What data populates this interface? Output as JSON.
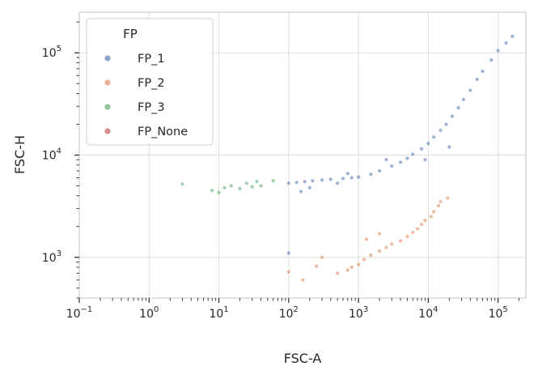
{
  "chart_data": {
    "type": "scatter",
    "xlabel": "FSC-A",
    "ylabel": "FSC-H",
    "x_scale": "log",
    "y_scale": "log",
    "xlim": [
      0.1,
      250000
    ],
    "ylim": [
      400,
      250000
    ],
    "x_ticks": [
      {
        "value": 0.1,
        "base": "10",
        "exp": "−1"
      },
      {
        "value": 1,
        "base": "10",
        "exp": "0"
      },
      {
        "value": 10,
        "base": "10",
        "exp": "1"
      },
      {
        "value": 100,
        "base": "10",
        "exp": "2"
      },
      {
        "value": 1000,
        "base": "10",
        "exp": "3"
      },
      {
        "value": 10000,
        "base": "10",
        "exp": "4"
      },
      {
        "value": 100000,
        "base": "10",
        "exp": "5"
      }
    ],
    "y_ticks": [
      {
        "value": 1000,
        "base": "10",
        "exp": "3"
      },
      {
        "value": 10000,
        "base": "10",
        "exp": "4"
      },
      {
        "value": 100000,
        "base": "10",
        "exp": "5"
      }
    ],
    "grid": true,
    "legend": {
      "title": "FP",
      "placement": "top-left",
      "entries": [
        "FP_1",
        "FP_2",
        "FP_3",
        "FP_None"
      ]
    },
    "series": [
      {
        "name": "FP_1",
        "color": "#4c72b0",
        "points": [
          [
            100,
            5300
          ],
          [
            130,
            5400
          ],
          [
            170,
            5500
          ],
          [
            220,
            5600
          ],
          [
            300,
            5700
          ],
          [
            400,
            5800
          ],
          [
            600,
            5900
          ],
          [
            800,
            6000
          ],
          [
            1000,
            6100
          ],
          [
            1500,
            6500
          ],
          [
            2000,
            7000
          ],
          [
            3000,
            7800
          ],
          [
            4000,
            8500
          ],
          [
            5000,
            9300
          ],
          [
            6000,
            10200
          ],
          [
            8000,
            11500
          ],
          [
            10000,
            13000
          ],
          [
            12000,
            15000
          ],
          [
            15000,
            17500
          ],
          [
            18000,
            20000
          ],
          [
            22000,
            24000
          ],
          [
            27000,
            29000
          ],
          [
            32000,
            35000
          ],
          [
            40000,
            43000
          ],
          [
            50000,
            55000
          ],
          [
            60000,
            66000
          ],
          [
            80000,
            85000
          ],
          [
            100000,
            105000
          ],
          [
            130000,
            125000
          ],
          [
            160000,
            145000
          ],
          [
            100,
            1100
          ],
          [
            200,
            4800
          ],
          [
            150,
            4400
          ],
          [
            500,
            5300
          ],
          [
            700,
            6600
          ],
          [
            2500,
            9000
          ],
          [
            9000,
            9000
          ],
          [
            20000,
            12000
          ]
        ]
      },
      {
        "name": "FP_2",
        "color": "#dd8452",
        "points": [
          [
            15000,
            3500
          ],
          [
            19000,
            3800
          ],
          [
            14000,
            3200
          ],
          [
            12000,
            2800
          ],
          [
            11000,
            2500
          ],
          [
            9000,
            2300
          ],
          [
            8000,
            2100
          ],
          [
            7000,
            1900
          ],
          [
            6000,
            1750
          ],
          [
            5000,
            1600
          ],
          [
            4000,
            1450
          ],
          [
            3000,
            1350
          ],
          [
            2500,
            1250
          ],
          [
            2000,
            1150
          ],
          [
            1500,
            1050
          ],
          [
            1200,
            950
          ],
          [
            1000,
            850
          ],
          [
            800,
            800
          ],
          [
            700,
            750
          ],
          [
            500,
            700
          ],
          [
            300,
            1000
          ],
          [
            250,
            820
          ],
          [
            160,
            600
          ],
          [
            100,
            720
          ],
          [
            1300,
            1500
          ],
          [
            2000,
            1700
          ]
        ]
      },
      {
        "name": "FP_3",
        "color": "#55a868",
        "points": [
          [
            3,
            5200
          ],
          [
            8,
            4500
          ],
          [
            10,
            4300
          ],
          [
            12,
            4800
          ],
          [
            15,
            5000
          ],
          [
            20,
            4700
          ],
          [
            25,
            5300
          ],
          [
            30,
            4900
          ],
          [
            35,
            5500
          ],
          [
            40,
            5000
          ],
          [
            60,
            5600
          ]
        ]
      },
      {
        "name": "FP_None",
        "color": "#c44e52",
        "points": []
      }
    ]
  }
}
